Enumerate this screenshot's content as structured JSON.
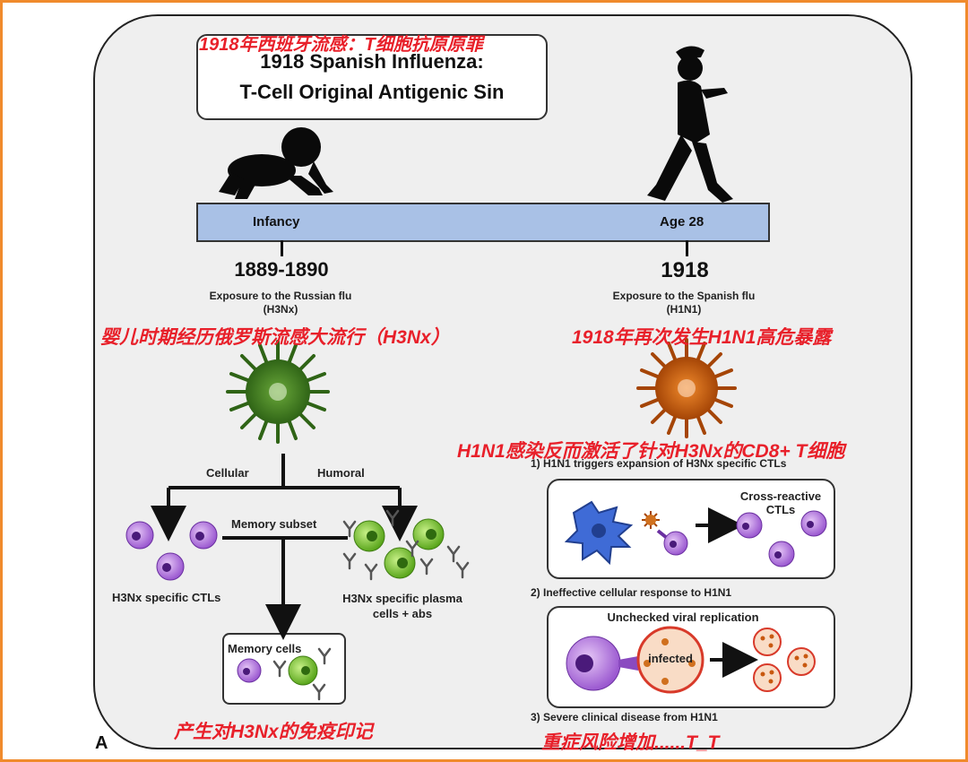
{
  "title": {
    "cn": "1918年西班牙流感：T细胞抗原原罪",
    "line1": "1918 Spanish Influenza:",
    "line2": "T-Cell Original Antigenic Sin"
  },
  "timeline": {
    "left_label": "Infancy",
    "right_label": "Age 28",
    "left_year": "1889-1890",
    "right_year": "1918",
    "left_exposure": "Exposure to the Russian flu",
    "left_strain": "(H3Nx)",
    "right_exposure": "Exposure to the Spanish flu",
    "right_strain": "(H1N1)",
    "left_cn": "婴儿时期经历俄罗斯流感大流行（H3Nx）",
    "right_cn": "1918年再次发生H1N1高危暴露"
  },
  "left_branch": {
    "cellular": "Cellular",
    "humoral": "Humoral",
    "memory_subset": "Memory subset",
    "ctl_label": "H3Nx specific CTLs",
    "plasma_label_1": "H3Nx specific plasma",
    "plasma_label_2": "cells + abs",
    "memory_cells": "Memory cells",
    "cn_note": "产生对H3Nx的免疫印记"
  },
  "right_branch": {
    "cn_header": "H1N1感染反而激活了针对H3Nx的CD8+ T细胞",
    "step1": "1) H1N1 triggers expansion of H3Nx specific CTLs",
    "cross_reactive_1": "Cross-reactive",
    "cross_reactive_2": "CTLs",
    "step2": "2) Ineffective cellular response to H1N1",
    "unchecked": "Unchecked viral replication",
    "infected": "infected",
    "step3": "3) Severe clinical disease from H1N1",
    "cn_note": "重症风险增加......T_T"
  },
  "panel_letter": "A",
  "colors": {
    "frame": "#f08a2c",
    "red_text": "#e8202a",
    "timeline": "#a9c1e6",
    "ctl_purple": "#b57edc",
    "plasma_green": "#8cd43a",
    "virus_green": "#3e7a1f",
    "virus_orange": "#c8580f",
    "dendritic_blue": "#3f6bd6"
  }
}
